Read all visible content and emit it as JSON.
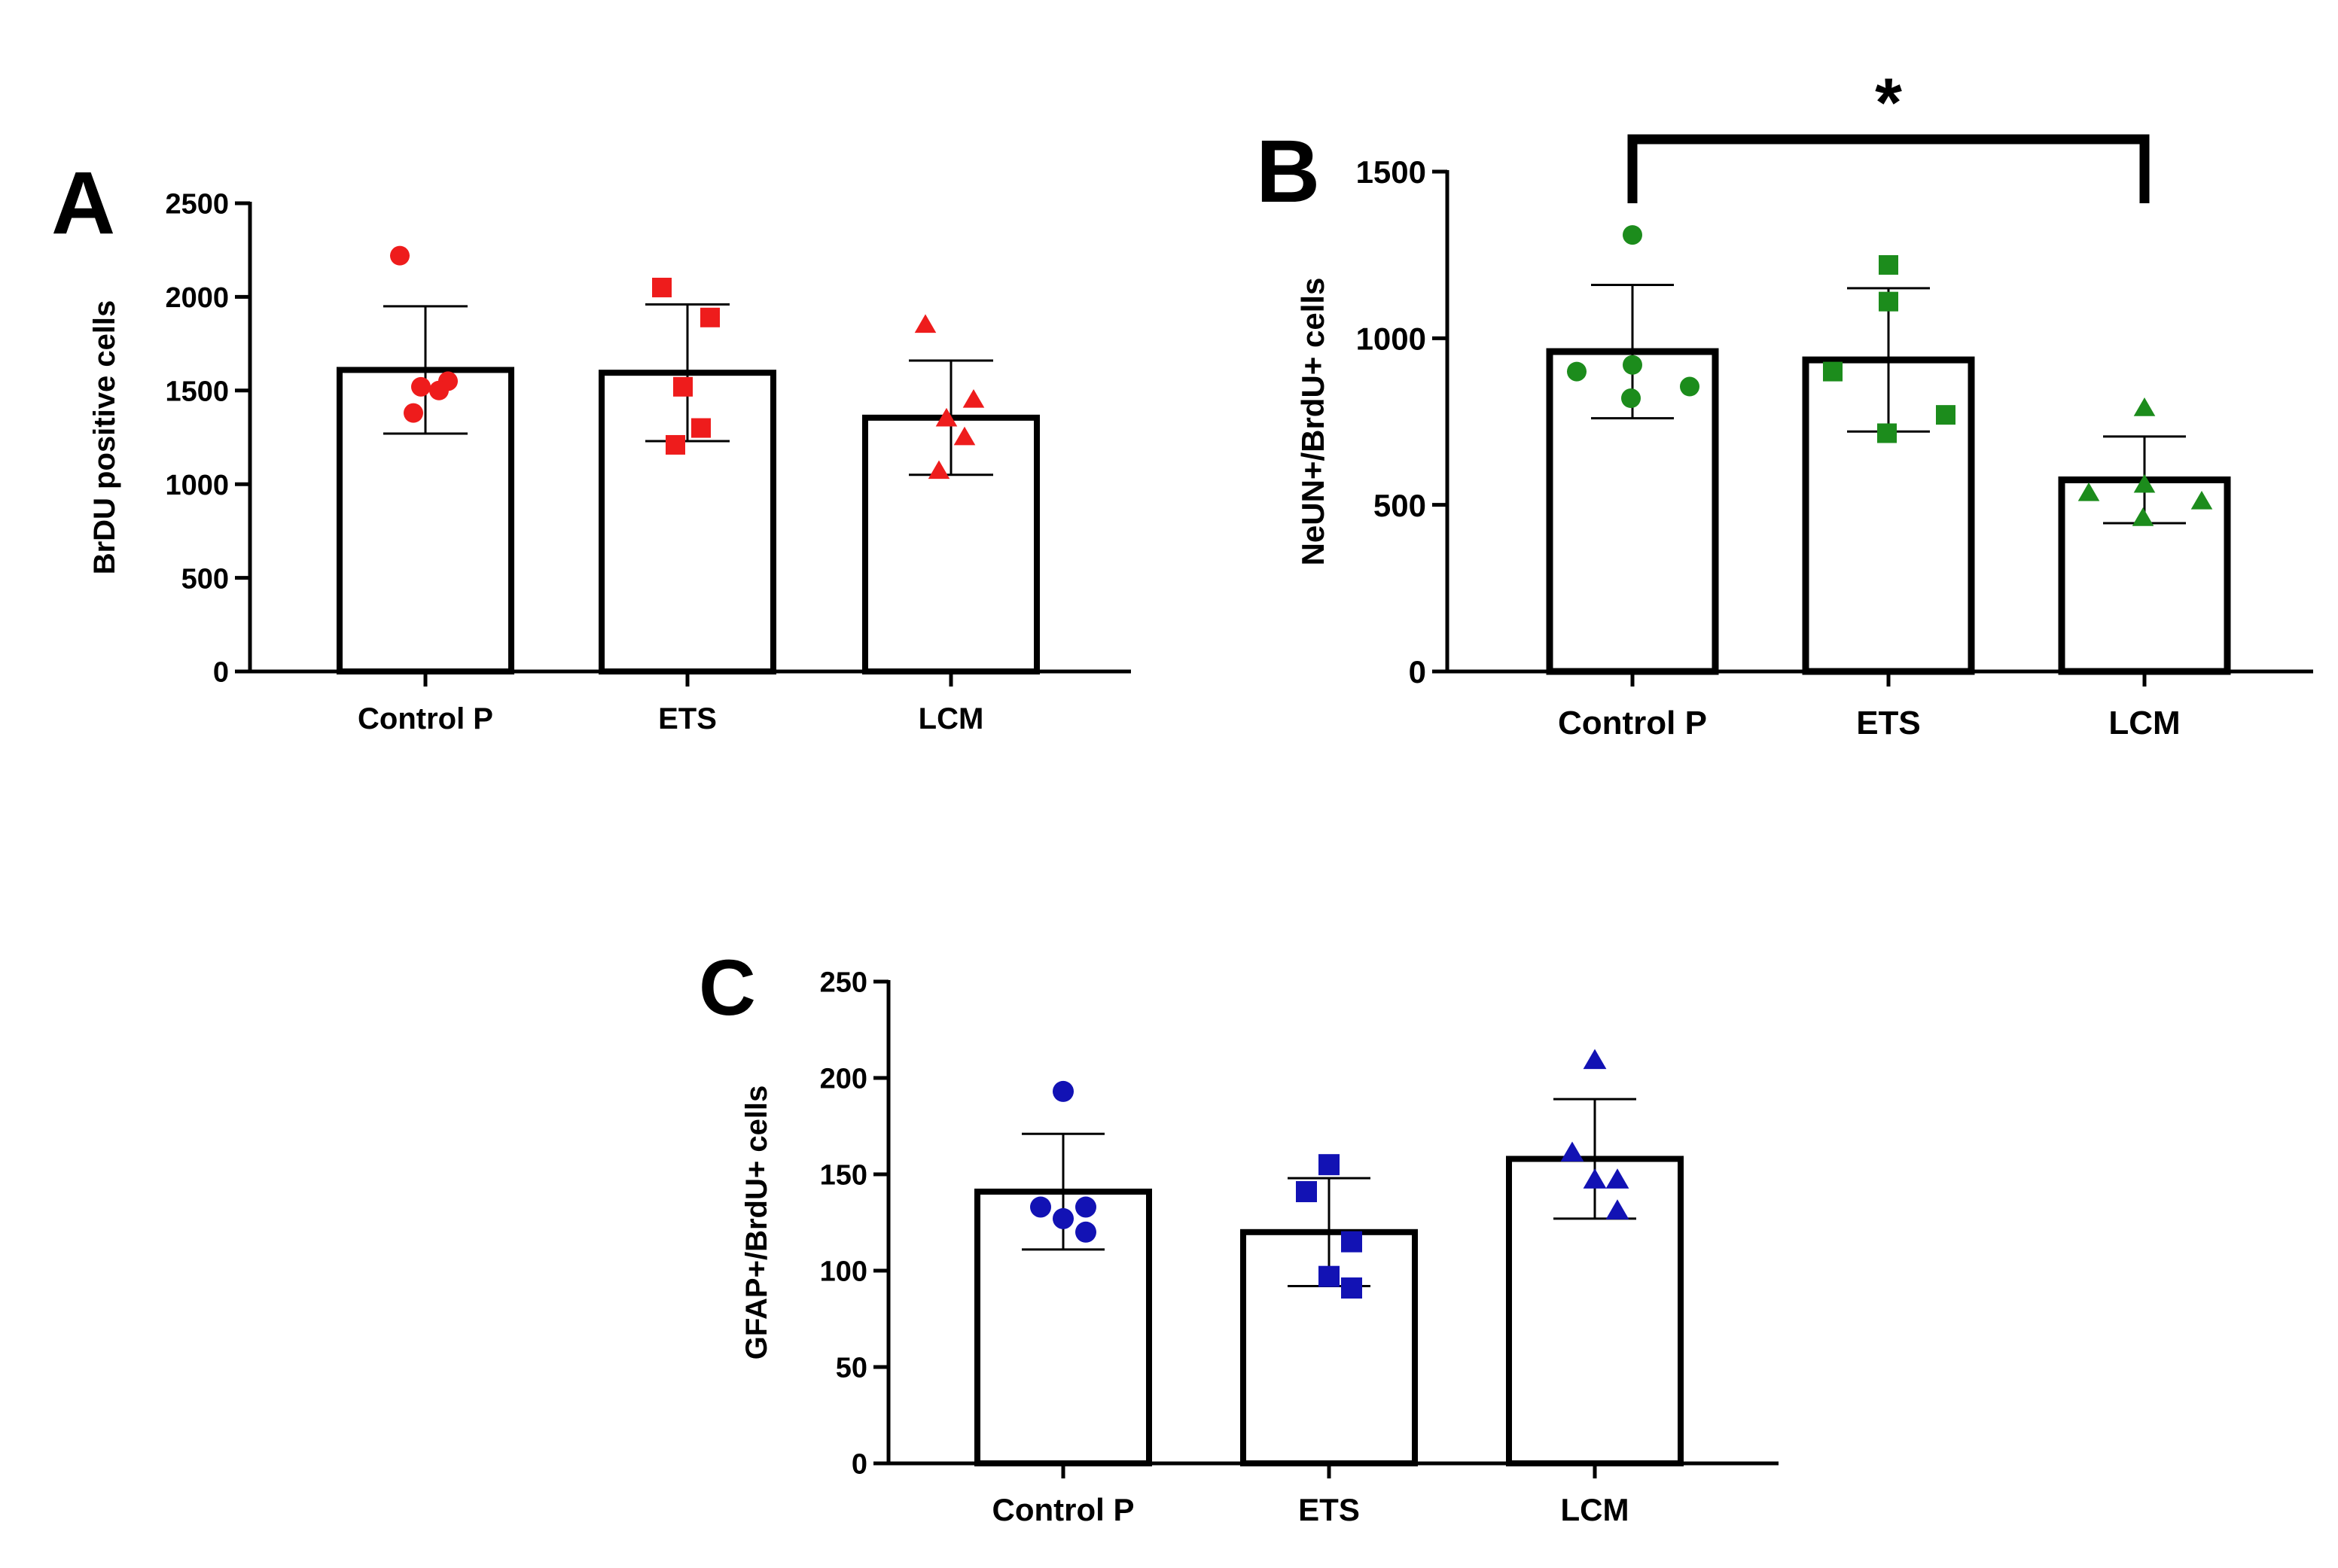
{
  "figure": {
    "panels": [
      "A",
      "B",
      "C"
    ],
    "significance": "*"
  },
  "chart_data": [
    {
      "panel": "A",
      "type": "bar",
      "title": "",
      "ylabel": "BrDU positive cells",
      "xlabel": "",
      "categories": [
        "Control P",
        "ETS",
        "LCM"
      ],
      "values": [
        1610,
        1595,
        1355
      ],
      "error_sd": [
        340,
        365,
        305
      ],
      "points": [
        [
          2220,
          1550,
          1520,
          1500,
          1380
        ],
        [
          2050,
          1890,
          1520,
          1300,
          1210
        ],
        [
          1850,
          1450,
          1350,
          1250,
          1070
        ]
      ],
      "markers": [
        "circle",
        "square",
        "triangle"
      ],
      "color": "#ee1c1c",
      "ylim": [
        0,
        2500
      ],
      "yticks": [
        0,
        500,
        1000,
        1500,
        2000,
        2500
      ],
      "ytick_labels": [
        "0",
        "500",
        "1000",
        "1500",
        "2000",
        "2500"
      ]
    },
    {
      "panel": "B",
      "type": "bar",
      "title": "",
      "ylabel": "NeUN+/BrdU+ cells",
      "xlabel": "",
      "categories": [
        "Control P",
        "ETS",
        "LCM"
      ],
      "values": [
        960,
        935,
        575
      ],
      "error_sd": [
        200,
        215,
        130
      ],
      "points": [
        [
          1310,
          920,
          900,
          855,
          820
        ],
        [
          1220,
          1110,
          900,
          770,
          715
        ],
        [
          790,
          560,
          535,
          510,
          460
        ]
      ],
      "markers": [
        "circle",
        "square",
        "triangle"
      ],
      "color": "#1c8c1c",
      "ylim": [
        0,
        1500
      ],
      "yticks": [
        0,
        500,
        1000,
        1500
      ],
      "ytick_labels": [
        "0",
        "500",
        "1000",
        "1500"
      ],
      "annotation": {
        "label": "*",
        "from": "Control P",
        "to": "LCM"
      }
    },
    {
      "panel": "C",
      "type": "bar",
      "title": "",
      "ylabel": "GFAP+/BrdU+ cells",
      "xlabel": "",
      "categories": [
        "Control P",
        "ETS",
        "LCM"
      ],
      "values": [
        141,
        120,
        158
      ],
      "error_sd": [
        30,
        28,
        31
      ],
      "points": [
        [
          193,
          133,
          133,
          127,
          120
        ],
        [
          155,
          141,
          115,
          97,
          91
        ],
        [
          209,
          161,
          147,
          147,
          131
        ]
      ],
      "markers": [
        "circle",
        "square",
        "triangle"
      ],
      "color": "#1212b4",
      "ylim": [
        0,
        250
      ],
      "yticks": [
        0,
        50,
        100,
        150,
        200,
        250
      ],
      "ytick_labels": [
        "0",
        "50",
        "100",
        "150",
        "200",
        "250"
      ]
    }
  ]
}
